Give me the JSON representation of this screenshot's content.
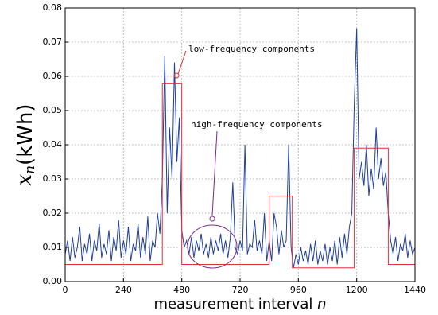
{
  "chart_data": {
    "type": "line",
    "xlabel": {
      "text": "measurement interval",
      "var": "n"
    },
    "ylabel": {
      "symbol": "x",
      "subscript": "n",
      "unit": "(kWh)"
    },
    "annotations": [
      {
        "text": "low-frequency components",
        "color": "#e8303a"
      },
      {
        "text": "high-frequency components",
        "color": "#7b2a8a"
      }
    ],
    "xlim": [
      0,
      1440
    ],
    "xticks": [
      0,
      240,
      480,
      720,
      960,
      1200,
      1440
    ],
    "ylim": [
      0,
      0.08
    ],
    "yticks": [
      {
        "value": 0,
        "label": "0.00"
      },
      {
        "value": 0.01,
        "label": "0.01"
      },
      {
        "value": 0.02,
        "label": "0.02"
      },
      {
        "value": 0.03,
        "label": "0.03"
      },
      {
        "value": 0.04,
        "label": "0.04"
      },
      {
        "value": 0.05,
        "label": "0.05"
      },
      {
        "value": 0.06,
        "label": "0.06"
      },
      {
        "value": 0.07,
        "label": "0.07"
      },
      {
        "value": 0.08,
        "label": "0.08"
      }
    ],
    "grid": true,
    "series": [
      {
        "color": "#1f3f9a",
        "x": [
          0,
          10,
          20,
          30,
          40,
          50,
          60,
          70,
          80,
          90,
          100,
          110,
          120,
          130,
          140,
          150,
          160,
          170,
          180,
          190,
          200,
          210,
          220,
          230,
          240,
          250,
          260,
          270,
          280,
          290,
          300,
          310,
          320,
          330,
          340,
          350,
          360,
          370,
          380,
          390,
          400,
          410,
          420,
          430,
          440,
          450,
          460,
          470,
          480,
          490,
          500,
          510,
          520,
          530,
          540,
          550,
          560,
          570,
          580,
          590,
          600,
          610,
          620,
          630,
          640,
          650,
          660,
          670,
          680,
          690,
          700,
          710,
          720,
          730,
          740,
          750,
          760,
          770,
          780,
          790,
          800,
          810,
          820,
          830,
          840,
          850,
          860,
          870,
          880,
          890,
          900,
          910,
          920,
          930,
          940,
          950,
          960,
          970,
          980,
          990,
          1000,
          1010,
          1020,
          1030,
          1040,
          1050,
          1060,
          1070,
          1080,
          1090,
          1100,
          1110,
          1120,
          1130,
          1140,
          1150,
          1160,
          1170,
          1180,
          1190,
          1200,
          1210,
          1220,
          1230,
          1240,
          1250,
          1260,
          1270,
          1280,
          1290,
          1300,
          1310,
          1320,
          1330,
          1340,
          1350,
          1360,
          1370,
          1380,
          1390,
          1400,
          1410,
          1420,
          1430,
          1440
        ],
        "values": [
          0.008,
          0.012,
          0.006,
          0.013,
          0.007,
          0.01,
          0.016,
          0.006,
          0.011,
          0.008,
          0.014,
          0.006,
          0.012,
          0.009,
          0.017,
          0.007,
          0.011,
          0.008,
          0.015,
          0.006,
          0.013,
          0.009,
          0.018,
          0.007,
          0.012,
          0.008,
          0.016,
          0.006,
          0.011,
          0.009,
          0.017,
          0.007,
          0.013,
          0.008,
          0.019,
          0.006,
          0.012,
          0.01,
          0.02,
          0.014,
          0.03,
          0.066,
          0.02,
          0.045,
          0.03,
          0.064,
          0.035,
          0.048,
          0.015,
          0.01,
          0.012,
          0.008,
          0.013,
          0.007,
          0.012,
          0.009,
          0.014,
          0.008,
          0.011,
          0.007,
          0.013,
          0.008,
          0.012,
          0.009,
          0.014,
          0.008,
          0.012,
          0.007,
          0.013,
          0.029,
          0.01,
          0.008,
          0.012,
          0.009,
          0.04,
          0.008,
          0.011,
          0.01,
          0.018,
          0.009,
          0.012,
          0.008,
          0.02,
          0.006,
          0.012,
          0.006,
          0.02,
          0.016,
          0.008,
          0.015,
          0.01,
          0.012,
          0.04,
          0.01,
          0.004,
          0.008,
          0.005,
          0.01,
          0.006,
          0.009,
          0.005,
          0.011,
          0.006,
          0.012,
          0.005,
          0.009,
          0.006,
          0.011,
          0.005,
          0.01,
          0.006,
          0.012,
          0.005,
          0.013,
          0.007,
          0.014,
          0.008,
          0.016,
          0.02,
          0.052,
          0.074,
          0.03,
          0.035,
          0.028,
          0.04,
          0.025,
          0.033,
          0.027,
          0.045,
          0.03,
          0.036,
          0.028,
          0.032,
          0.02,
          0.012,
          0.008,
          0.013,
          0.006,
          0.011,
          0.009,
          0.014,
          0.007,
          0.012,
          0.008,
          0.01
        ]
      },
      {
        "color": "#e8303a",
        "x": [
          0,
          400,
          400,
          480,
          480,
          840,
          840,
          935,
          935,
          1190,
          1190,
          1330,
          1330,
          1440
        ],
        "values": [
          0.005,
          0.005,
          0.058,
          0.058,
          0.005,
          0.005,
          0.025,
          0.025,
          0.004,
          0.004,
          0.039,
          0.039,
          0.005,
          0.005
        ]
      }
    ]
  }
}
